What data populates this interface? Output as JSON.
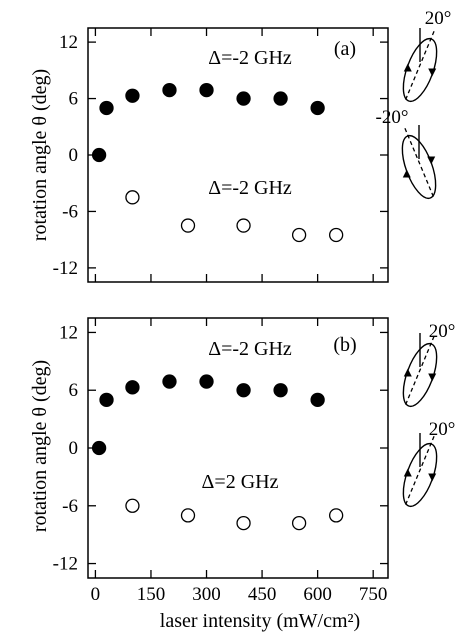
{
  "chart_data": [
    {
      "type": "scatter",
      "panel_label": "(a)",
      "ylabel": "rotation angle θ (deg)",
      "xlabel": "laser intensity (mW/cm²)",
      "xlim": [
        -20,
        790
      ],
      "ylim": [
        -13.5,
        13.5
      ],
      "x_ticks": [
        0,
        150,
        300,
        450,
        600,
        750
      ],
      "y_ticks": [
        12,
        6,
        0,
        -6,
        -12
      ],
      "y_tick_labels": [
        "12",
        "6",
        "0",
        "-6",
        "-12"
      ],
      "grid": false,
      "series": [
        {
          "marker": "filled-circle",
          "annotation": "Δ=-2 GHz",
          "x": [
            10,
            30,
            100,
            200,
            300,
            400,
            500,
            600
          ],
          "y": [
            0,
            5,
            6.3,
            6.9,
            6.9,
            6.0,
            6.0,
            5.0
          ]
        },
        {
          "marker": "open-circle",
          "annotation": "Δ=-2 GHz",
          "x": [
            100,
            250,
            400,
            550,
            650
          ],
          "y": [
            -4.5,
            -7.5,
            -7.5,
            -8.5,
            -8.5
          ]
        }
      ],
      "insets": [
        {
          "angle_label": "20°",
          "tilt": 20
        },
        {
          "angle_label": "-20°",
          "tilt": -20
        }
      ]
    },
    {
      "type": "scatter",
      "panel_label": "(b)",
      "ylabel": "rotation angle θ (deg)",
      "xlabel": "laser intensity (mW/cm²)",
      "xlim": [
        -20,
        790
      ],
      "ylim": [
        -13.5,
        13.5
      ],
      "x_ticks": [
        0,
        150,
        300,
        450,
        600,
        750
      ],
      "x_tick_labels": [
        "0",
        "150",
        "300",
        "450",
        "600",
        "750"
      ],
      "y_ticks": [
        12,
        6,
        0,
        -6,
        -12
      ],
      "y_tick_labels": [
        "12",
        "6",
        "0",
        "-6",
        "-12"
      ],
      "grid": false,
      "series": [
        {
          "marker": "filled-circle",
          "annotation": "Δ=-2 GHz",
          "x": [
            10,
            30,
            100,
            200,
            300,
            400,
            500,
            600
          ],
          "y": [
            0,
            5,
            6.3,
            6.9,
            6.9,
            6.0,
            6.0,
            5.0
          ]
        },
        {
          "marker": "open-circle",
          "annotation": "Δ=2 GHz",
          "x": [
            100,
            250,
            400,
            550,
            650
          ],
          "y": [
            -6.0,
            -7.0,
            -7.8,
            -7.8,
            -7.0
          ]
        }
      ],
      "insets": [
        {
          "angle_label": "20°",
          "tilt": 20
        },
        {
          "angle_label": "20°",
          "tilt": 20
        }
      ]
    }
  ]
}
